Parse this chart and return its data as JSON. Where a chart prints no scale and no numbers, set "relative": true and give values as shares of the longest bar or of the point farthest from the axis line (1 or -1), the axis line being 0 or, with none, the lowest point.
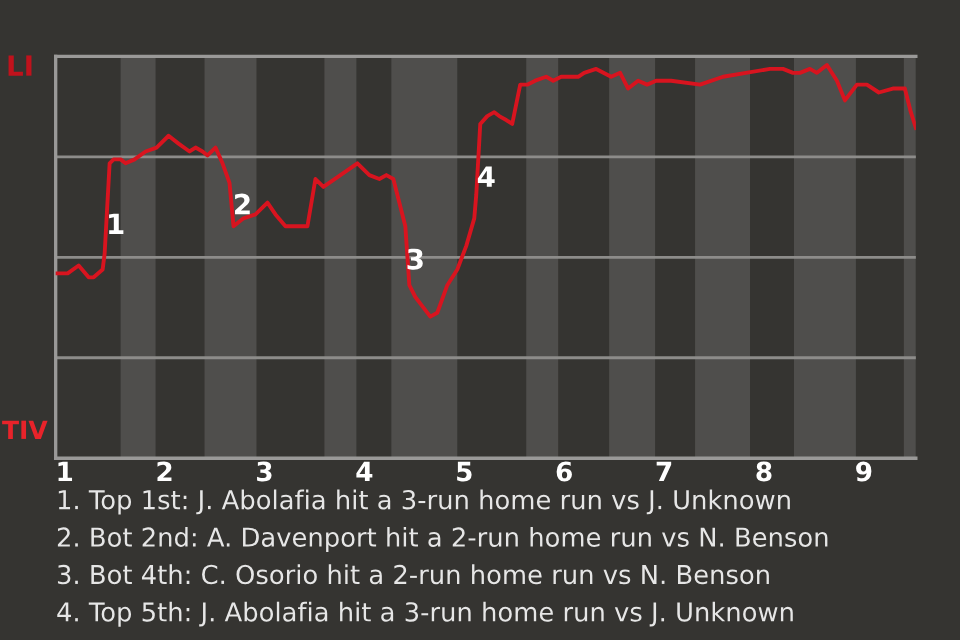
{
  "chart_data": {
    "type": "line",
    "relative": true,
    "x": [
      0.92,
      1.03,
      1.14,
      1.24,
      1.29,
      1.38,
      1.4,
      1.45,
      1.49,
      1.56,
      1.61,
      1.7,
      1.81,
      1.92,
      2.04,
      2.14,
      2.25,
      2.31,
      2.38,
      2.43,
      2.51,
      2.58,
      2.65,
      2.69,
      2.79,
      2.91,
      3.03,
      3.11,
      3.21,
      3.43,
      3.51,
      3.59,
      3.76,
      3.93,
      4.05,
      4.15,
      4.22,
      4.29,
      4.37,
      4.41,
      4.45,
      4.51,
      4.57,
      4.66,
      4.73,
      4.83,
      4.93,
      5.02,
      5.1,
      5.12,
      5.16,
      5.23,
      5.3,
      5.35,
      5.42,
      5.48,
      5.56,
      5.63,
      5.71,
      5.82,
      5.89,
      5.97,
      6.14,
      6.2,
      6.32,
      6.47,
      6.56,
      6.64,
      6.74,
      6.83,
      6.92,
      7.07,
      7.36,
      7.59,
      7.82,
      8.06,
      8.19,
      8.29,
      8.36,
      8.46,
      8.53,
      8.63,
      8.73,
      8.81,
      8.93,
      9.03,
      9.15,
      9.29,
      9.41,
      9.47,
      9.52
    ],
    "series": [
      {
        "color": "#d8141f",
        "values": [
          0.47,
          0.47,
          0.49,
          0.46,
          0.46,
          0.48,
          0.52,
          0.75,
          0.76,
          0.76,
          0.75,
          0.76,
          0.78,
          0.79,
          0.82,
          0.8,
          0.78,
          0.79,
          0.78,
          0.77,
          0.79,
          0.75,
          0.7,
          0.59,
          0.61,
          0.62,
          0.65,
          0.62,
          0.59,
          0.59,
          0.71,
          0.69,
          0.72,
          0.75,
          0.72,
          0.71,
          0.72,
          0.71,
          0.63,
          0.59,
          0.44,
          0.41,
          0.39,
          0.36,
          0.37,
          0.44,
          0.48,
          0.54,
          0.61,
          0.67,
          0.85,
          0.87,
          0.88,
          0.87,
          0.86,
          0.85,
          0.95,
          0.95,
          0.96,
          0.97,
          0.96,
          0.97,
          0.97,
          0.98,
          0.99,
          0.97,
          0.98,
          0.94,
          0.96,
          0.95,
          0.96,
          0.96,
          0.95,
          0.97,
          0.98,
          0.99,
          0.99,
          0.98,
          0.98,
          0.99,
          0.98,
          1.0,
          0.96,
          0.91,
          0.95,
          0.95,
          0.93,
          0.94,
          0.94,
          0.88,
          0.84
        ]
      }
    ],
    "xlim": [
      0.91,
      9.52
    ],
    "xticks": [
      1,
      2,
      3,
      4,
      5,
      6,
      7,
      8,
      9
    ],
    "tick_labels": "x",
    "grid": "y",
    "marker": "none",
    "line_style": "solid",
    "bands": [
      {
        "axis": "x",
        "from": 1.56,
        "to": 1.91,
        "color": "#4f4e4c"
      },
      {
        "axis": "x",
        "from": 2.4,
        "to": 2.92,
        "color": "#4f4e4c"
      },
      {
        "axis": "x",
        "from": 3.6,
        "to": 3.92,
        "color": "#4f4e4c"
      },
      {
        "axis": "x",
        "from": 4.27,
        "to": 4.93,
        "color": "#4f4e4c"
      },
      {
        "axis": "x",
        "from": 5.62,
        "to": 5.94,
        "color": "#4f4e4c"
      },
      {
        "axis": "x",
        "from": 6.45,
        "to": 6.91,
        "color": "#4f4e4c"
      },
      {
        "axis": "x",
        "from": 7.31,
        "to": 7.86,
        "color": "#4f4e4c"
      },
      {
        "axis": "x",
        "from": 8.3,
        "to": 8.92,
        "color": "#4f4e4c"
      },
      {
        "axis": "x",
        "from": 9.4,
        "to": 9.52,
        "color": "#4f4e4c"
      }
    ],
    "annotations": [
      "LI",
      "TIV",
      {
        "text": "1",
        "x": 1.51,
        "y": 0.59
      },
      {
        "text": "2",
        "x": 2.78,
        "y": 0.64
      },
      {
        "text": "3",
        "x": 4.51,
        "y": 0.5
      },
      {
        "text": "4",
        "x": 5.22,
        "y": 0.71
      },
      "1. Top 1st: J. Abolafia hit a 3-run home run vs J. Unknown",
      "2. Bot 2nd: A. Davenport hit a 2-run home run vs N. Benson",
      "3. Bot 4th: C. Osorio hit a 2-run home run vs N. Benson",
      "4. Top 5th: J. Abolafia hit a 3-run home run vs J. Unknown"
    ]
  }
}
